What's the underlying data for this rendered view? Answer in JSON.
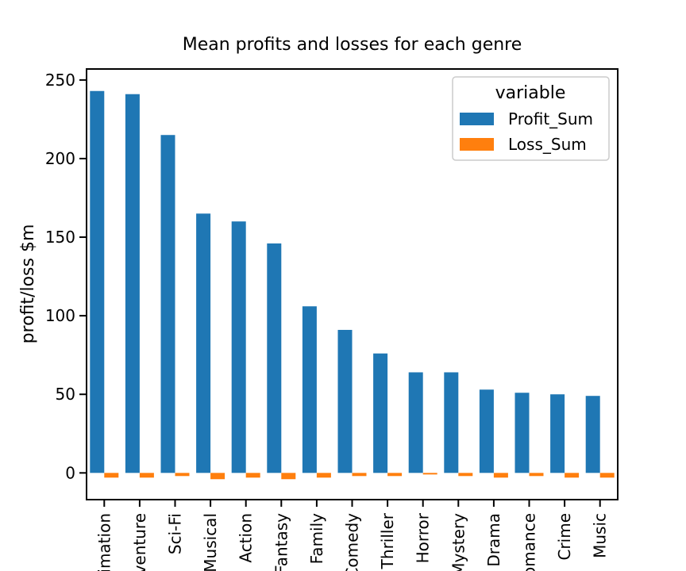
{
  "chart_data": {
    "type": "bar",
    "title": "Mean profits and losses for each genre",
    "xlabel": "",
    "ylabel": "profit/loss $m",
    "categories": [
      "Animation",
      "Adventure",
      "Sci-Fi",
      "Musical",
      "Action",
      "Fantasy",
      "Family",
      "Comedy",
      "Thriller",
      "Horror",
      "Mystery",
      "Drama",
      "Romance",
      "Crime",
      "Music"
    ],
    "series": [
      {
        "name": "Profit_Sum",
        "color": "#1f77b4",
        "values": [
          243,
          241,
          215,
          165,
          160,
          146,
          106,
          91,
          76,
          64,
          64,
          53,
          51,
          50,
          49
        ]
      },
      {
        "name": "Loss_Sum",
        "color": "#ff7f0e",
        "values": [
          -3,
          -3,
          -2,
          -4,
          -3,
          -4,
          -3,
          -2,
          -2,
          -1,
          -2,
          -3,
          -2,
          -3,
          -3
        ]
      }
    ],
    "ylim": [
      -17,
      257
    ],
    "yticks": [
      0,
      50,
      100,
      150,
      200,
      250
    ],
    "legend": {
      "title": "variable",
      "position": "top-right"
    },
    "grid": false
  }
}
